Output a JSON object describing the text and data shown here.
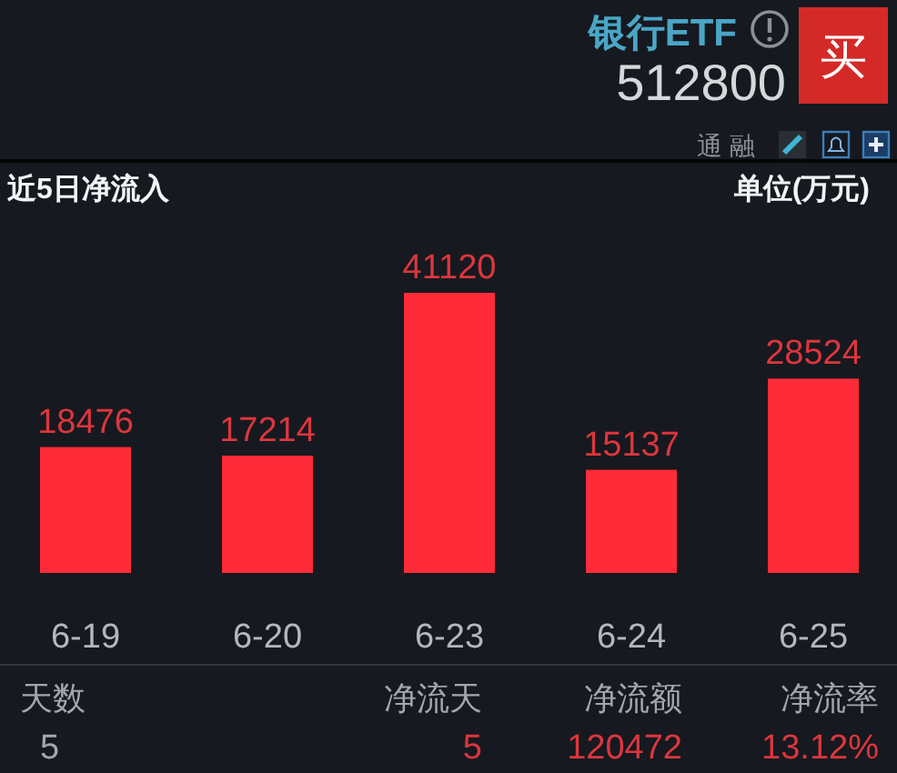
{
  "chart_data": {
    "type": "bar",
    "title": "近5日净流入",
    "ylabel": "单位(万元)",
    "categories": [
      "6-19",
      "6-20",
      "6-23",
      "6-24",
      "6-25"
    ],
    "values": [
      18476,
      17214,
      41120,
      15137,
      28524
    ],
    "color": "#ff2b38",
    "data_labels": true,
    "annotations": [
      "银行ETF",
      "512800",
      "买",
      "通",
      "融",
      "天数",
      "5",
      "净流天",
      "5",
      "净流额",
      "120472",
      "净流率",
      "13.12%"
    ]
  }
}
